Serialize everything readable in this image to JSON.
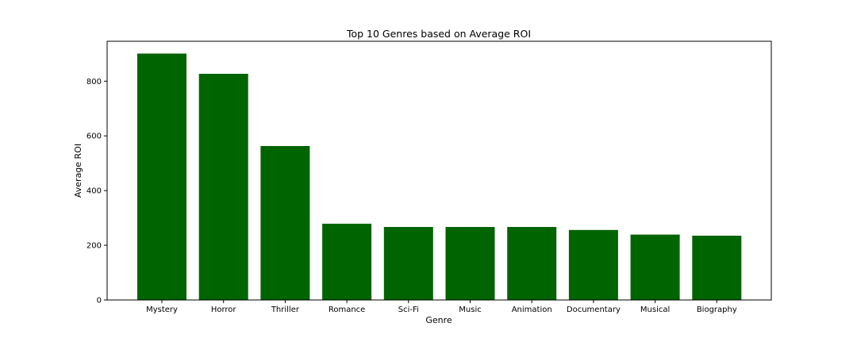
{
  "chart_data": {
    "type": "bar",
    "title": "Top 10 Genres based on Average ROI",
    "xlabel": "Genre",
    "ylabel": "Average ROI",
    "categories": [
      "Mystery",
      "Horror",
      "Thriller",
      "Romance",
      "Sci-Fi",
      "Music",
      "Animation",
      "Documentary",
      "Musical",
      "Biography"
    ],
    "values": [
      901,
      827,
      563,
      279,
      267,
      267,
      267,
      256,
      239,
      235
    ],
    "ylim": [
      0,
      946
    ],
    "yticks": [
      0,
      200,
      400,
      600,
      800
    ],
    "bar_color": "#006400",
    "grid": false,
    "legend": "none"
  }
}
